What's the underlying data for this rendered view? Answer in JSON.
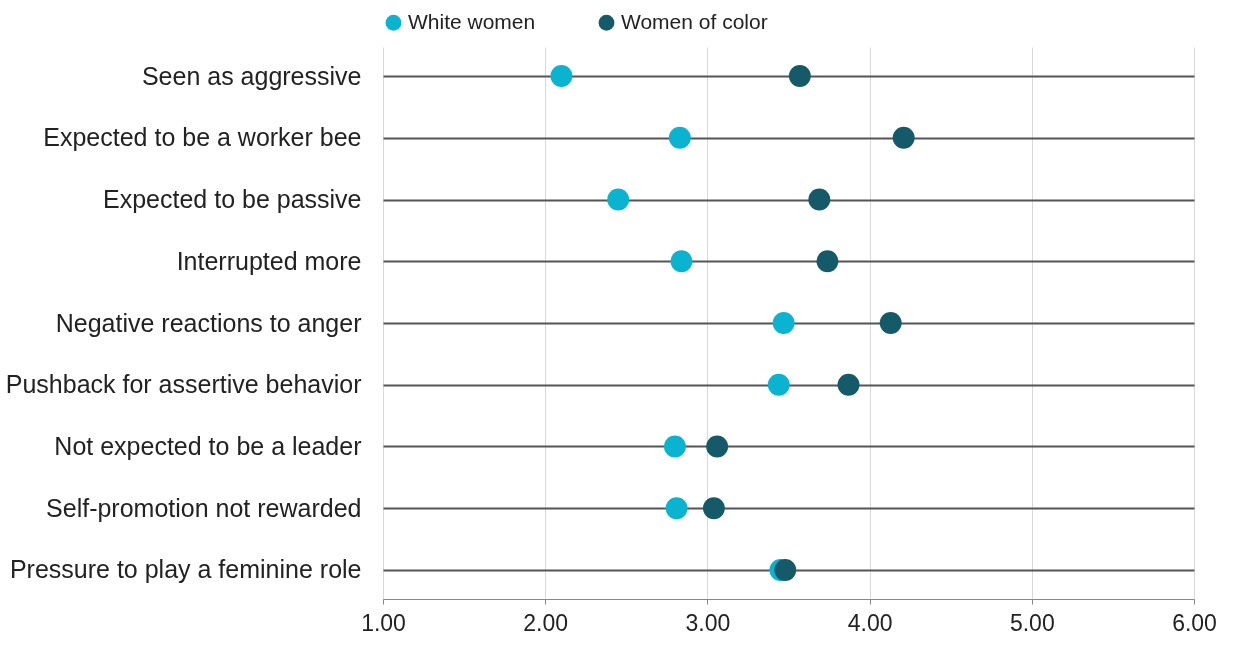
{
  "chart_data": {
    "type": "scatter",
    "orientation": "horizontal",
    "categories": [
      "Seen as aggressive",
      "Expected to be a worker bee",
      "Expected to be passive",
      "Interrupted more",
      "Negative reactions to anger",
      "Pushback for assertive behavior",
      "Not expected to be a leader",
      "Self-promotion not rewarded",
      "Pressure to play a feminine role"
    ],
    "series": [
      {
        "name": "White women",
        "color": "#0ab3d0",
        "values": [
          2.1,
          2.83,
          2.45,
          2.84,
          3.47,
          3.44,
          2.8,
          2.81,
          3.45
        ]
      },
      {
        "name": "Women of color",
        "color": "#155a69",
        "values": [
          3.57,
          4.21,
          3.69,
          3.74,
          4.13,
          3.87,
          3.06,
          3.04,
          3.48
        ]
      }
    ],
    "xlim": [
      1,
      6
    ],
    "xticks": [
      {
        "value": 1,
        "label": "1.00"
      },
      {
        "value": 2,
        "label": "2.00"
      },
      {
        "value": 3,
        "label": "3.00"
      },
      {
        "value": 4,
        "label": "4.00"
      },
      {
        "value": 5,
        "label": "5.00"
      },
      {
        "value": 6,
        "label": "6.00"
      }
    ],
    "grid": true,
    "legend": "top",
    "marker": "circle"
  }
}
